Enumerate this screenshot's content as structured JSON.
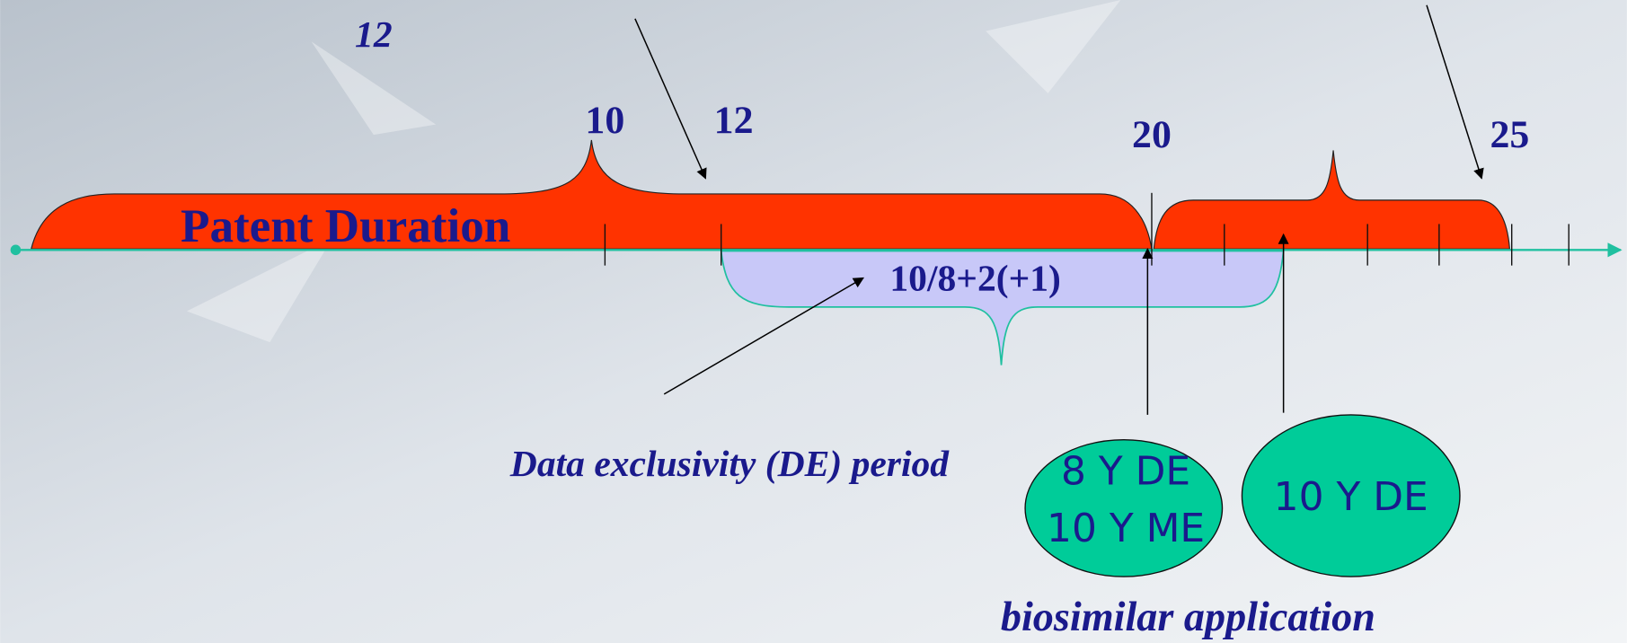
{
  "labels": {
    "top_note": "12",
    "tick_10": "10",
    "tick_12": "12",
    "tick_20": "20",
    "tick_25": "25"
  },
  "patent": {
    "label": "Patent Duration"
  },
  "exclusivity": {
    "formula": "10/8+2(+1)",
    "label": "Data exclusivity (DE) period"
  },
  "ellipses": [
    {
      "lines": [
        "8 Y DE",
        "10 Y ME"
      ]
    },
    {
      "lines": [
        "10 Y DE"
      ]
    }
  ],
  "footer": {
    "label": "biosimilar application"
  }
}
